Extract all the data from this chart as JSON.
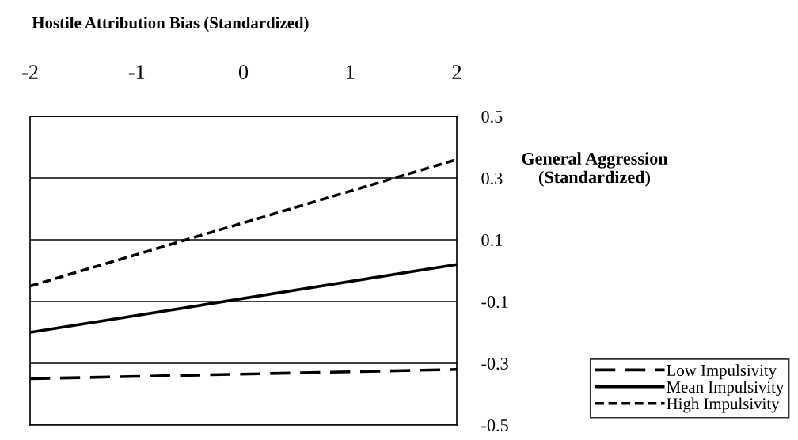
{
  "chart_data": {
    "type": "line",
    "title": "Hostile Attribution Bias (Standardized)",
    "ylabel": "General Aggression\n(Standardized)",
    "x": [
      -2,
      2
    ],
    "xlim": [
      -2,
      2
    ],
    "xticks": [
      -2,
      -1,
      0,
      1,
      2
    ],
    "ylim": [
      -0.5,
      0.5
    ],
    "yticks": [
      -0.5,
      -0.3,
      -0.1,
      0.1,
      0.3,
      0.5
    ],
    "grid": "y",
    "legend": "bottom right",
    "marker": "none",
    "series": [
      {
        "name": "Low Impulsivity",
        "color": "#000000",
        "line_style": "dashed",
        "values": [
          -0.35,
          -0.32
        ]
      },
      {
        "name": "Mean Impulsivity",
        "color": "#000000",
        "line_style": "solid",
        "values": [
          -0.2,
          0.02
        ]
      },
      {
        "name": "High Impulsivity",
        "color": "#000000",
        "line_style": "dotted",
        "values": [
          -0.05,
          0.36
        ]
      }
    ]
  }
}
